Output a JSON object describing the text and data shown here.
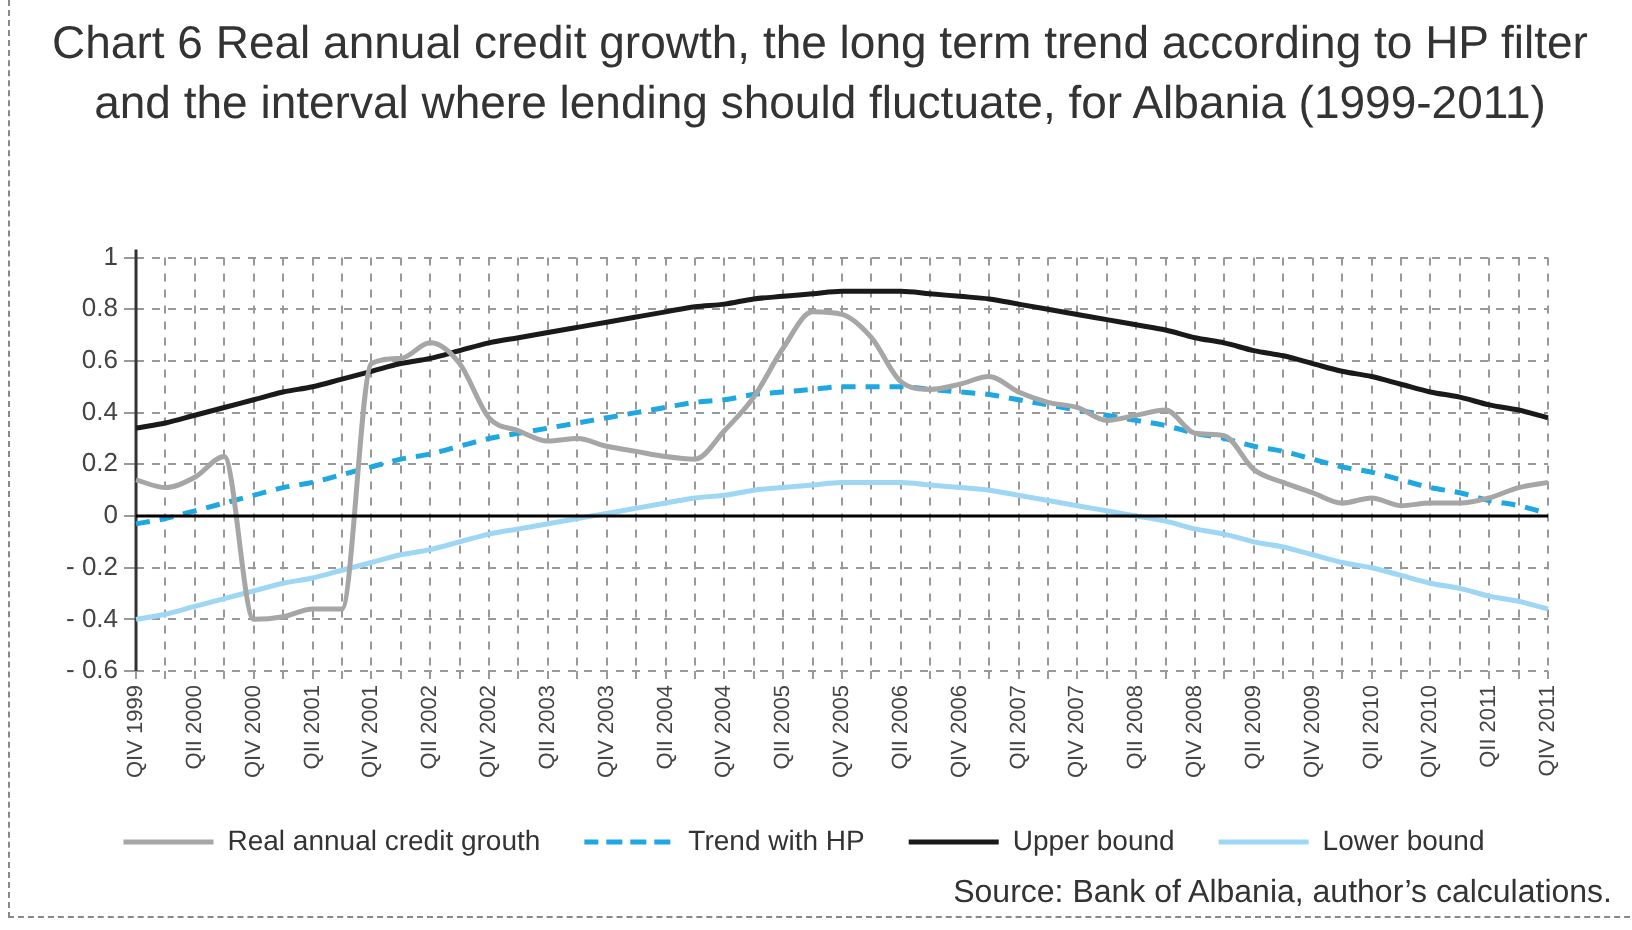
{
  "chart_data": {
    "type": "line",
    "title": "Chart 6 Real annual credit growth, the long term trend according to HP filter and the interval where lending should fluctuate, for Albania (1999-2011)",
    "categories": [
      "QIV 1999",
      null,
      "QII 2000",
      null,
      "QIV 2000",
      null,
      "QII 2001",
      null,
      "QIV 2001",
      null,
      "QII 2002",
      null,
      "QIV 2002",
      null,
      "QII 2003",
      null,
      "QIV 2003",
      null,
      "QII 2004",
      null,
      "QIV 2004",
      null,
      "QII 2005",
      null,
      "QIV 2005",
      null,
      "QII 2006",
      null,
      "QIV 2006",
      null,
      "QII 2007",
      null,
      "QIV 2007",
      null,
      "QII 2008",
      null,
      "QIV 2008",
      null,
      "QII 2009",
      null,
      "QIV 2009",
      null,
      "QII 2010",
      null,
      "QIV 2010",
      null,
      "QII 2011",
      null,
      "QIV 2011"
    ],
    "series": [
      {
        "name": "Real annual credit grouth",
        "color": "#a6a6a6",
        "line_style": "solid",
        "values": [
          0.14,
          0.11,
          0.15,
          0.23,
          -0.4,
          -0.39,
          -0.36,
          -0.36,
          0.59,
          0.61,
          0.67,
          0.59,
          0.38,
          0.33,
          0.29,
          0.3,
          0.27,
          0.25,
          0.23,
          0.22,
          0.33,
          0.46,
          0.65,
          0.79,
          0.78,
          0.69,
          0.52,
          0.49,
          0.51,
          0.54,
          0.48,
          0.44,
          0.42,
          0.37,
          0.39,
          0.41,
          0.32,
          0.31,
          0.18,
          0.13,
          0.09,
          0.05,
          0.07,
          0.04,
          0.05,
          0.05,
          0.07,
          0.11,
          0.13
        ]
      },
      {
        "name": "Trend with HP",
        "color": "#1ea7e1",
        "line_style": "dashed",
        "values": [
          -0.03,
          -0.01,
          0.02,
          0.05,
          0.08,
          0.11,
          0.13,
          0.16,
          0.19,
          0.22,
          0.24,
          0.27,
          0.3,
          0.32,
          0.34,
          0.36,
          0.38,
          0.4,
          0.42,
          0.44,
          0.45,
          0.47,
          0.48,
          0.49,
          0.5,
          0.5,
          0.5,
          0.49,
          0.48,
          0.47,
          0.45,
          0.43,
          0.41,
          0.39,
          0.37,
          0.35,
          0.32,
          0.3,
          0.27,
          0.25,
          0.22,
          0.19,
          0.17,
          0.14,
          0.11,
          0.09,
          0.06,
          0.04,
          0.01
        ]
      },
      {
        "name": "Upper bound",
        "color": "#1a1a1a",
        "line_style": "solid",
        "values": [
          0.34,
          0.36,
          0.39,
          0.42,
          0.45,
          0.48,
          0.5,
          0.53,
          0.56,
          0.59,
          0.61,
          0.64,
          0.67,
          0.69,
          0.71,
          0.73,
          0.75,
          0.77,
          0.79,
          0.81,
          0.82,
          0.84,
          0.85,
          0.86,
          0.87,
          0.87,
          0.87,
          0.86,
          0.85,
          0.84,
          0.82,
          0.8,
          0.78,
          0.76,
          0.74,
          0.72,
          0.69,
          0.67,
          0.64,
          0.62,
          0.59,
          0.56,
          0.54,
          0.51,
          0.48,
          0.46,
          0.43,
          0.41,
          0.38
        ]
      },
      {
        "name": "Lower bound",
        "color": "#9dd7f3",
        "line_style": "solid",
        "values": [
          -0.4,
          -0.38,
          -0.35,
          -0.32,
          -0.29,
          -0.26,
          -0.24,
          -0.21,
          -0.18,
          -0.15,
          -0.13,
          -0.1,
          -0.07,
          -0.05,
          -0.03,
          -0.01,
          0.01,
          0.03,
          0.05,
          0.07,
          0.08,
          0.1,
          0.11,
          0.12,
          0.13,
          0.13,
          0.13,
          0.12,
          0.11,
          0.1,
          0.08,
          0.06,
          0.04,
          0.02,
          0.0,
          -0.02,
          -0.05,
          -0.07,
          -0.1,
          -0.12,
          -0.15,
          -0.18,
          -0.2,
          -0.23,
          -0.26,
          -0.28,
          -0.31,
          -0.33,
          -0.36
        ]
      }
    ],
    "ylim": [
      -0.6,
      1
    ],
    "yticks": [
      {
        "value": -0.6,
        "label": "- 0.6"
      },
      {
        "value": -0.4,
        "label": "- 0.4"
      },
      {
        "value": -0.2,
        "label": "- 0.2"
      },
      0,
      0.2,
      0.4,
      0.6,
      0.8,
      1
    ],
    "grid": true,
    "legend": "bottom",
    "marker": "none",
    "annotations": [
      "Source: Bank of Albania, author’s calculations."
    ]
  }
}
